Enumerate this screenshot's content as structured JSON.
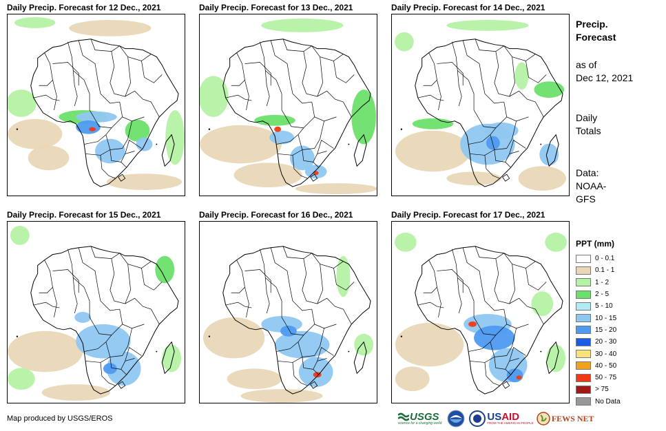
{
  "panels": [
    {
      "title": "Daily Precip. Forecast for 12 Dec., 2021"
    },
    {
      "title": "Daily Precip. Forecast for 13 Dec., 2021"
    },
    {
      "title": "Daily Precip. Forecast for 14 Dec., 2021"
    },
    {
      "title": "Daily Precip. Forecast for 15 Dec., 2021"
    },
    {
      "title": "Daily Precip. Forecast for 16 Dec., 2021"
    },
    {
      "title": "Daily Precip. Forecast for 17 Dec., 2021"
    }
  ],
  "side": {
    "heading_line1": "Precip.",
    "heading_line2": "Forecast",
    "asof_line1": "as of",
    "asof_line2": "Dec 12, 2021",
    "totals_line1": "Daily",
    "totals_line2": "Totals",
    "data_line1": "Data:",
    "data_line2": "NOAA-",
    "data_line3": "GFS"
  },
  "legend": {
    "title": "PPT (mm)",
    "items": [
      {
        "label": "0 - 0.1",
        "color": "#ffffff"
      },
      {
        "label": "0.1 - 1",
        "color": "#e9d7b7"
      },
      {
        "label": "1 - 2",
        "color": "#b4f2a4"
      },
      {
        "label": "2 - 5",
        "color": "#6de06a"
      },
      {
        "label": "5 - 10",
        "color": "#b2ecf2"
      },
      {
        "label": "10 - 15",
        "color": "#8fc7f1"
      },
      {
        "label": "15 - 20",
        "color": "#4e9af0"
      },
      {
        "label": "20 - 30",
        "color": "#1b5be6"
      },
      {
        "label": "30 - 40",
        "color": "#f8e27a"
      },
      {
        "label": "40 - 50",
        "color": "#f0a11e"
      },
      {
        "label": "50 - 75",
        "color": "#ee3b14"
      },
      {
        "label": "> 75",
        "color": "#a01818"
      },
      {
        "label": "No Data",
        "color": "#999999"
      }
    ]
  },
  "credit": "Map produced by USGS/EROS",
  "logos": {
    "usgs": "USGS",
    "usgs_tagline": "science for a changing world",
    "usaid": "USAID",
    "usaid_tagline": "FROM THE AMERICAN PEOPLE",
    "fewsnet": "FEWS NET"
  },
  "colors": {
    "land": "#ffffff",
    "border": "#000000",
    "sand": "#e9d7b7",
    "lightgreen": "#b4f2a4",
    "green": "#6de06a",
    "cyan": "#b2ecf2",
    "lightblue": "#8fc7f1",
    "blue": "#4e9af0",
    "darkblue": "#1b5be6",
    "orange": "#f0a11e",
    "red": "#ee3b14",
    "usgs_green": "#1a6e3a",
    "usaid_blue": "#1e3d8f",
    "usaid_red": "#c8102e"
  }
}
